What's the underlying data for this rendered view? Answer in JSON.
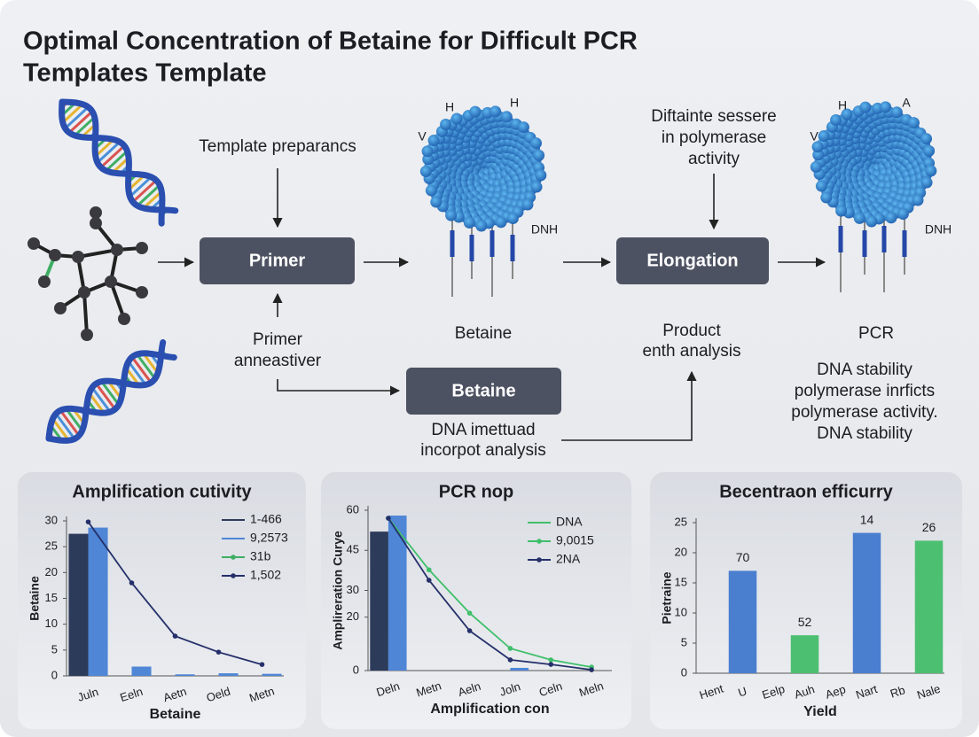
{
  "title": [
    "Optimal Concentration of Betaine for Difficult PCR",
    "Templates Template"
  ],
  "diagram": {
    "input_label": "Template preparancs",
    "primer_box": "Primer",
    "primer_note": [
      "Primer",
      "anneastiver"
    ],
    "betaine_label": "Betaine",
    "betaine_box": "Betaine",
    "betaine_note": [
      "DNA imettuad",
      "incorpot analysis"
    ],
    "elongation_note": [
      "Diftainte sessere",
      "in polymerase",
      "activity"
    ],
    "elongation_box": "Elongation",
    "product_note": [
      "Product",
      "enth analysis"
    ],
    "pcr_label": "PCR",
    "pcr_note": [
      "DNA stability",
      "polymerase inrficts",
      "polymerase activity.",
      "DNA stability"
    ],
    "particle1_labels": [
      "H",
      "H",
      "V",
      "DNH"
    ],
    "particle2_labels": [
      "H",
      "A",
      "V",
      "DNH"
    ]
  },
  "chart_data": [
    {
      "type": "bar",
      "title": "Amplification cutivity",
      "ylabel": "Betaine",
      "xlabel": "Betaine",
      "categories": [
        "Juln",
        "Eeln",
        "Aetn",
        "Oeld",
        "Metn"
      ],
      "ylim": [
        0,
        30
      ],
      "yticks": [
        0,
        5,
        10,
        15,
        20,
        25,
        30
      ],
      "series": [
        {
          "name": "1-466",
          "kind": "bar",
          "color": "#2d3b5a",
          "values": [
            27.5,
            null,
            null,
            null,
            null
          ]
        },
        {
          "name": "9,2573",
          "kind": "bar",
          "color": "#4f86d6",
          "values": [
            28.7,
            1.8,
            0.3,
            0.5,
            0.4
          ]
        },
        {
          "name": "31b",
          "kind": "line",
          "color": "#3fae63",
          "markers": true,
          "values": [
            null,
            null,
            null,
            null,
            null
          ]
        },
        {
          "name": "1,502",
          "kind": "line",
          "color": "#25306a",
          "markers": true,
          "values": [
            29.8,
            18,
            7.7,
            4.6,
            2.2
          ]
        }
      ]
    },
    {
      "type": "bar",
      "title": "PCR nop",
      "ylabel": "Amplireration Curye",
      "xlabel": "Amplification con",
      "categories": [
        "Deln",
        "Metn",
        "Aeln",
        "Joln",
        "Celn",
        "Meln"
      ],
      "ylim": [
        0,
        60
      ],
      "yticks": [
        0,
        20,
        30,
        45,
        60
      ],
      "series": [
        {
          "kind": "bar",
          "color": "#2d3b5a",
          "values": [
            52,
            null,
            null,
            null,
            null,
            null
          ]
        },
        {
          "kind": "bar",
          "color": "#4f86d6",
          "values": [
            58,
            null,
            null,
            1,
            null,
            null
          ]
        },
        {
          "name": "DNA",
          "kind": "line",
          "color": "#3fbf6a",
          "values": [
            null,
            null,
            null,
            null,
            null,
            null
          ]
        },
        {
          "name": "9,0015",
          "kind": "line",
          "color": "#3fbf6a",
          "markers": true,
          "values": [
            57,
            37.7,
            21.5,
            8.3,
            4,
            1.3
          ]
        },
        {
          "name": "2NA",
          "kind": "line",
          "color": "#25306a",
          "markers": true,
          "values": [
            57,
            33.8,
            14.9,
            4,
            2.3,
            0.3
          ]
        }
      ]
    },
    {
      "type": "bar",
      "title": "Becentraon efficurry",
      "ylabel": "Pietraine",
      "xlabel": "Yield",
      "categories": [
        "Hent",
        "U",
        "Eelp",
        "Auh",
        "Aep",
        "Nart",
        "Rb",
        "Nale"
      ],
      "ylim": [
        0,
        25
      ],
      "yticks": [
        0,
        5,
        10,
        15,
        20,
        25
      ],
      "series": [
        {
          "kind": "bar",
          "colors": [
            "#4a7fd0",
            "#4a7fd0",
            "#4cbf70",
            "#4cbf70",
            "#4a7fd0",
            "#4a7fd0",
            "#4cbf70",
            "#4cbf70"
          ],
          "values": [
            null,
            17,
            null,
            6.3,
            null,
            23.3,
            null,
            22
          ],
          "annotations": [
            null,
            "70",
            null,
            "52",
            null,
            "14",
            null,
            "26"
          ]
        }
      ]
    }
  ]
}
